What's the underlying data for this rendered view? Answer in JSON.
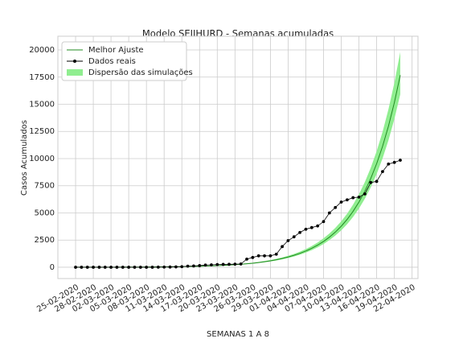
{
  "chart_data": {
    "type": "line",
    "title": "Modelo SEIIHURD - Semanas acumuladas",
    "xlabel": "SEMANAS 1 A 8",
    "ylabel": "Casos Acumulados",
    "x": [
      "25-02-2020",
      "26-02-2020",
      "27-02-2020",
      "28-02-2020",
      "29-02-2020",
      "01-03-2020",
      "02-03-2020",
      "03-03-2020",
      "04-03-2020",
      "05-03-2020",
      "06-03-2020",
      "07-03-2020",
      "08-03-2020",
      "09-03-2020",
      "10-03-2020",
      "11-03-2020",
      "12-03-2020",
      "13-03-2020",
      "14-03-2020",
      "15-03-2020",
      "16-03-2020",
      "17-03-2020",
      "18-03-2020",
      "19-03-2020",
      "20-03-2020",
      "21-03-2020",
      "22-03-2020",
      "23-03-2020",
      "24-03-2020",
      "25-03-2020",
      "26-03-2020",
      "27-03-2020",
      "28-03-2020",
      "29-03-2020",
      "30-03-2020",
      "31-03-2020",
      "01-04-2020",
      "02-04-2020",
      "03-04-2020",
      "04-04-2020",
      "05-04-2020",
      "06-04-2020",
      "07-04-2020",
      "08-04-2020",
      "09-04-2020",
      "10-04-2020",
      "11-04-2020",
      "12-04-2020",
      "13-04-2020",
      "14-04-2020",
      "15-04-2020",
      "16-04-2020",
      "17-04-2020",
      "18-04-2020",
      "19-04-2020",
      "20-04-2020"
    ],
    "series": [
      {
        "name": "Melhor Ajuste",
        "color": "#228b22",
        "marker": false,
        "values": [
          3,
          4,
          5,
          6,
          7,
          8,
          9,
          11,
          12,
          14,
          17,
          20,
          23,
          27,
          31,
          37,
          43,
          50,
          58,
          68,
          80,
          93,
          108,
          126,
          147,
          172,
          201,
          234,
          273,
          319,
          372,
          434,
          507,
          592,
          690,
          806,
          940,
          1097,
          1280,
          1494,
          1744,
          2035,
          2375,
          2772,
          3235,
          3775,
          4405,
          5141,
          6000,
          7002,
          8171,
          9536,
          11128,
          12987,
          15156,
          17687
        ]
      },
      {
        "name": "Dados reais",
        "color": "#000000",
        "marker": true,
        "values": [
          0,
          0,
          0,
          0,
          0,
          0,
          0,
          0,
          0,
          0,
          0,
          0,
          0,
          0,
          10,
          15,
          20,
          30,
          50,
          100,
          120,
          150,
          200,
          220,
          250,
          260,
          270,
          280,
          300,
          750,
          900,
          1050,
          1050,
          1050,
          1200,
          1900,
          2450,
          2800,
          3200,
          3500,
          3650,
          3800,
          4200,
          5000,
          5500,
          6000,
          6200,
          6400,
          6450,
          6750,
          7800,
          7900,
          8800,
          9500,
          9650,
          9850
        ]
      }
    ],
    "band": {
      "name": "Dispersão das simulações",
      "color": "#90ee90",
      "upper": [
        3,
        4,
        6,
        7,
        8,
        9,
        10,
        12,
        13,
        16,
        19,
        22,
        26,
        30,
        35,
        41,
        48,
        56,
        65,
        76,
        90,
        104,
        121,
        141,
        165,
        193,
        225,
        262,
        306,
        357,
        417,
        486,
        568,
        663,
        773,
        903,
        1053,
        1229,
        1434,
        1673,
        1953,
        2279,
        2660,
        3105,
        3623,
        4228,
        4934,
        5758,
        6720,
        7842,
        9152,
        10680,
        12463,
        14545,
        16975,
        19809
      ],
      "lower": [
        3,
        4,
        5,
        5,
        6,
        7,
        8,
        10,
        11,
        13,
        15,
        18,
        21,
        24,
        28,
        33,
        39,
        45,
        52,
        61,
        72,
        84,
        97,
        113,
        132,
        155,
        181,
        211,
        246,
        287,
        335,
        391,
        456,
        533,
        621,
        725,
        846,
        987,
        1152,
        1345,
        1570,
        1832,
        2138,
        2495,
        2912,
        3398,
        3965,
        4627,
        5400,
        6302,
        7354,
        8582,
        10015,
        11688,
        13640,
        15918
      ]
    },
    "xlim": [
      "22-02-2020",
      "23-04-2020"
    ],
    "xticks": [
      "25-02-2020",
      "28-02-2020",
      "02-03-2020",
      "05-03-2020",
      "08-03-2020",
      "11-03-2020",
      "14-03-2020",
      "17-03-2020",
      "20-03-2020",
      "23-03-2020",
      "26-03-2020",
      "29-03-2020",
      "01-04-2020",
      "04-04-2020",
      "07-04-2020",
      "10-04-2020",
      "13-04-2020",
      "16-04-2020",
      "19-04-2020",
      "22-04-2020"
    ],
    "ylim": [
      -1040,
      21260
    ],
    "yticks": [
      0,
      2500,
      5000,
      7500,
      10000,
      12500,
      15000,
      17500,
      20000
    ],
    "grid": true,
    "legend": "upper left"
  }
}
